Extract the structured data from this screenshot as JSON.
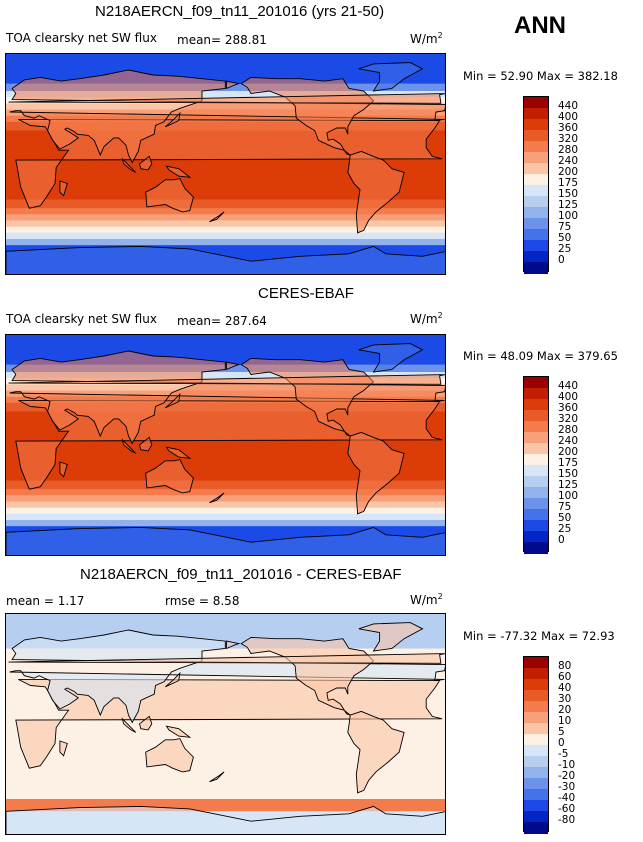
{
  "header": {
    "season": "ANN"
  },
  "panels": [
    {
      "title": "N218AERCN_f09_tn11_201016 (yrs 21-50)",
      "left_label": "TOA clearsky net SW flux",
      "stat_text": "mean= 288.81",
      "unit": "W/m",
      "unit_sup": "2",
      "minmax": "Min =  52.90 Max = 382.18",
      "field": "abs",
      "levels": [
        "440",
        "400",
        "360",
        "320",
        "280",
        "240",
        "200",
        "175",
        "150",
        "125",
        "100",
        "75",
        "50",
        "25",
        "0"
      ],
      "colors": [
        "#9b0000",
        "#c41e00",
        "#dc3c08",
        "#e85a28",
        "#f47c4c",
        "#f8a07a",
        "#fcc6a6",
        "#fdf0e4",
        "#d6e6f6",
        "#b6cef0",
        "#92b2ec",
        "#6c92ea",
        "#4472ea",
        "#1c4ae6",
        "#0026c8",
        "#000a8a"
      ]
    },
    {
      "title": "CERES-EBAF",
      "left_label": "TOA clearsky net SW flux",
      "stat_text": "mean= 287.64",
      "unit": "W/m",
      "unit_sup": "2",
      "minmax": "Min =  48.09 Max = 379.65",
      "field": "abs",
      "levels": [
        "440",
        "400",
        "360",
        "320",
        "280",
        "240",
        "200",
        "175",
        "150",
        "125",
        "100",
        "75",
        "50",
        "25",
        "0"
      ],
      "colors": [
        "#9b0000",
        "#c41e00",
        "#dc3c08",
        "#e85a28",
        "#f47c4c",
        "#f8a07a",
        "#fcc6a6",
        "#fdf0e4",
        "#d6e6f6",
        "#b6cef0",
        "#92b2ec",
        "#6c92ea",
        "#4472ea",
        "#1c4ae6",
        "#0026c8",
        "#000a8a"
      ]
    },
    {
      "title": "N218AERCN_f09_tn11_201016 - CERES-EBAF",
      "left_label": "mean =    1.17",
      "stat_text": "rmse =    8.58",
      "unit": "W/m",
      "unit_sup": "2",
      "minmax": "Min = -77.32 Max =  72.93",
      "field": "diff",
      "levels": [
        "80",
        "60",
        "40",
        "30",
        "20",
        "10",
        "5",
        "0",
        "-5",
        "-10",
        "-20",
        "-30",
        "-40",
        "-60",
        "-80"
      ],
      "colors": [
        "#9b0000",
        "#c41e00",
        "#dc3c08",
        "#e85a28",
        "#f47c4c",
        "#f8a07a",
        "#fcc6a6",
        "#fdf0e4",
        "#d6e6f6",
        "#b6cef0",
        "#92b2ec",
        "#6c92ea",
        "#4472ea",
        "#1c4ae6",
        "#0026c8",
        "#000a8a"
      ]
    }
  ]
}
